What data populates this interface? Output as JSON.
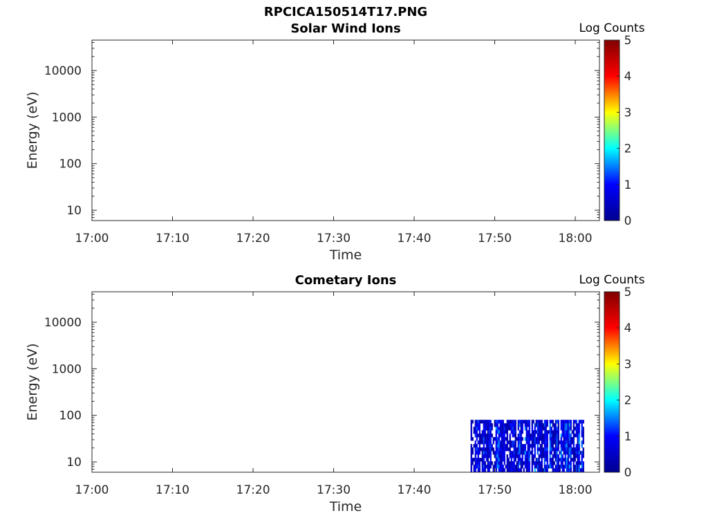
{
  "figure_title": "RPCICA150514T17.PNG",
  "colormap": [
    "#00008f",
    "#0000ff",
    "#00ffff",
    "#ffff00",
    "#ff0000",
    "#800000"
  ],
  "chart_data": [
    {
      "type": "heatmap",
      "title": "Solar Wind Ions",
      "xlabel": "Time",
      "ylabel": "Energy (eV)",
      "y_scale": "log",
      "ylim": [
        6,
        45000
      ],
      "xlim": [
        "17:00",
        "18:03"
      ],
      "x_ticks": [
        "17:00",
        "17:10",
        "17:20",
        "17:30",
        "17:40",
        "17:50",
        "18:00"
      ],
      "y_ticks": [
        10,
        100,
        1000,
        10000
      ],
      "colorbar": {
        "label": "Log Counts",
        "range": [
          0,
          5
        ],
        "ticks": [
          0,
          1,
          2,
          3,
          4,
          5
        ]
      },
      "data_regions": []
    },
    {
      "type": "heatmap",
      "title": "Cometary Ions",
      "xlabel": "Time",
      "ylabel": "Energy (eV)",
      "y_scale": "log",
      "ylim": [
        6,
        45000
      ],
      "xlim": [
        "17:00",
        "18:03"
      ],
      "x_ticks": [
        "17:00",
        "17:10",
        "17:20",
        "17:30",
        "17:40",
        "17:50",
        "18:00"
      ],
      "y_ticks": [
        10,
        100,
        1000,
        10000
      ],
      "colorbar": {
        "label": "Log Counts",
        "range": [
          0,
          5
        ],
        "ticks": [
          0,
          1,
          2,
          3,
          4,
          5
        ]
      },
      "data_regions": [
        {
          "t_start": "17:47",
          "t_end": "18:01",
          "e_min": 6,
          "e_max": 80,
          "log_counts_range": [
            0,
            1.8
          ]
        }
      ]
    }
  ]
}
